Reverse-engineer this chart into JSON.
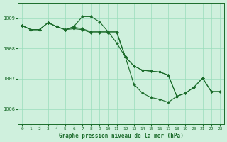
{
  "title": "Graphe pression niveau de la mer (hPa)",
  "background_color": "#cff0dd",
  "grid_color": "#99ddbb",
  "line_color": "#1a6b2a",
  "xlim": [
    -0.5,
    23.5
  ],
  "ylim": [
    1005.5,
    1009.5
  ],
  "yticks": [
    1006,
    1007,
    1008,
    1009
  ],
  "xticks": [
    0,
    1,
    2,
    3,
    4,
    5,
    6,
    7,
    8,
    9,
    10,
    11,
    12,
    13,
    14,
    15,
    16,
    17,
    18,
    19,
    20,
    21,
    22,
    23
  ],
  "line1_x": [
    0,
    1,
    2,
    3,
    4,
    5,
    6,
    7,
    8,
    9,
    10,
    11,
    12,
    13,
    14,
    15,
    16,
    17,
    18
  ],
  "line1_y": [
    1008.75,
    1008.62,
    1008.62,
    1008.85,
    1008.72,
    1008.62,
    1008.72,
    1009.05,
    1009.05,
    1008.88,
    1008.55,
    1008.18,
    1007.72,
    1006.82,
    1006.52,
    1006.38,
    1006.32,
    1006.22,
    1006.42
  ],
  "line2_x": [
    0,
    1,
    2,
    3,
    4,
    5,
    6,
    7,
    8,
    9,
    10,
    11,
    12,
    13,
    14,
    15,
    16,
    17,
    18,
    19,
    20,
    21,
    22
  ],
  "line2_y": [
    1008.75,
    1008.62,
    1008.62,
    1008.85,
    1008.72,
    1008.62,
    1008.7,
    1008.65,
    1008.55,
    1008.55,
    1008.55,
    1008.55,
    1007.72,
    1007.42,
    1007.28,
    1007.25,
    1007.22,
    1007.12,
    1006.42,
    1006.52,
    1006.72,
    1007.02,
    1006.58
  ],
  "line3_x": [
    0,
    1,
    2,
    3,
    4,
    5,
    6,
    7,
    8,
    9,
    10,
    11,
    12,
    13,
    14,
    15,
    16,
    17,
    18,
    19,
    20,
    21,
    22,
    23
  ],
  "line3_y": [
    1008.75,
    1008.62,
    1008.62,
    1008.85,
    1008.72,
    1008.62,
    1008.65,
    1008.62,
    1008.52,
    1008.52,
    1008.52,
    1008.52,
    1007.72,
    1007.42,
    1007.28,
    1007.25,
    1007.22,
    1007.12,
    1006.42,
    1006.52,
    1006.72,
    1007.02,
    1006.58,
    1006.58
  ]
}
